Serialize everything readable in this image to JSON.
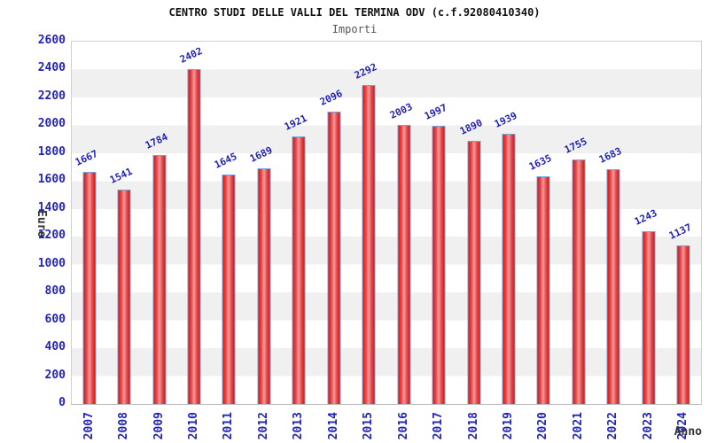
{
  "header": {
    "title": "CENTRO STUDI DELLE VALLI DEL TERMINA ODV (c.f.92080410340)",
    "subtitle": "Importi"
  },
  "axes": {
    "y_title": "Euro",
    "x_title": "Anno",
    "y_ticks": [
      0,
      200,
      400,
      600,
      800,
      1000,
      1200,
      1400,
      1600,
      1800,
      2000,
      2200,
      2400,
      2600
    ]
  },
  "colors": {
    "label_blue": "#2323b8",
    "bar_red": "#d91313",
    "bar_highlight": "#f09c9c",
    "bar_border_blue": "#6fa5dd",
    "band_gray": "#f0f0f0",
    "title_black": "#111111",
    "subtitle_gray": "#555555",
    "axis_title_gray": "#333333"
  },
  "chart_data": {
    "type": "bar",
    "title": "CENTRO STUDI DELLE VALLI DEL TERMINA ODV (c.f.92080410340)",
    "subtitle": "Importi",
    "xlabel": "Anno",
    "ylabel": "Euro",
    "ylim": [
      0,
      2600
    ],
    "y_tick_step": 200,
    "grid": "alternating horizontal bands white/gray every 200",
    "legend": "none",
    "categories": [
      "2007",
      "2008",
      "2009",
      "2010",
      "2011",
      "2012",
      "2013",
      "2014",
      "2015",
      "2016",
      "2017",
      "2018",
      "2019",
      "2020",
      "2021",
      "2022",
      "2023",
      "2024"
    ],
    "values": [
      1667,
      1541,
      1784,
      2402,
      1645,
      1689,
      1921,
      2096,
      2292,
      2003,
      1997,
      1890,
      1939,
      1635,
      1755,
      1683,
      1243,
      1137
    ]
  }
}
